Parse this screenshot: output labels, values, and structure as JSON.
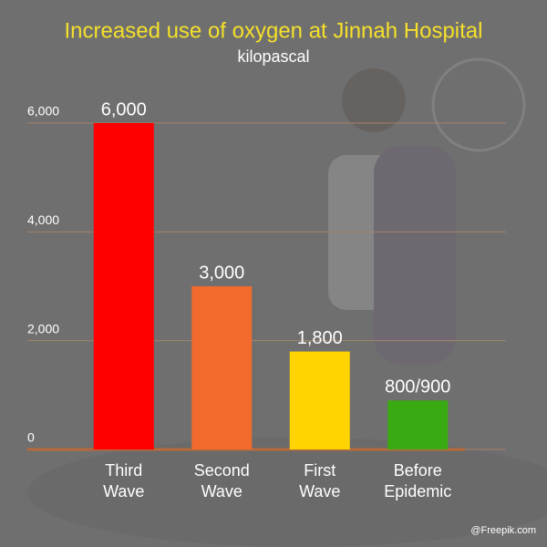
{
  "chart_data": {
    "type": "bar",
    "title": "Increased use of oxygen at Jinnah Hospital",
    "subtitle": "kilopascal",
    "categories": [
      "Third Wave",
      "Second Wave",
      "First Wave",
      "Before Epidemic"
    ],
    "values": [
      6000,
      3000,
      1800,
      900
    ],
    "value_labels": [
      "6,000",
      "3,000",
      "1,800",
      "800/900"
    ],
    "colors": [
      "#ff0000",
      "#f26a2e",
      "#ffd400",
      "#3aaa12"
    ],
    "ylim": [
      0,
      6000
    ],
    "yticks": [
      0,
      {
        "value": 2000,
        "label": "2,000"
      },
      {
        "value": 4000,
        "label": "4,000"
      },
      {
        "value": 6000,
        "label": "6,000"
      }
    ],
    "grid": true
  },
  "credit": "@Freepik.com"
}
